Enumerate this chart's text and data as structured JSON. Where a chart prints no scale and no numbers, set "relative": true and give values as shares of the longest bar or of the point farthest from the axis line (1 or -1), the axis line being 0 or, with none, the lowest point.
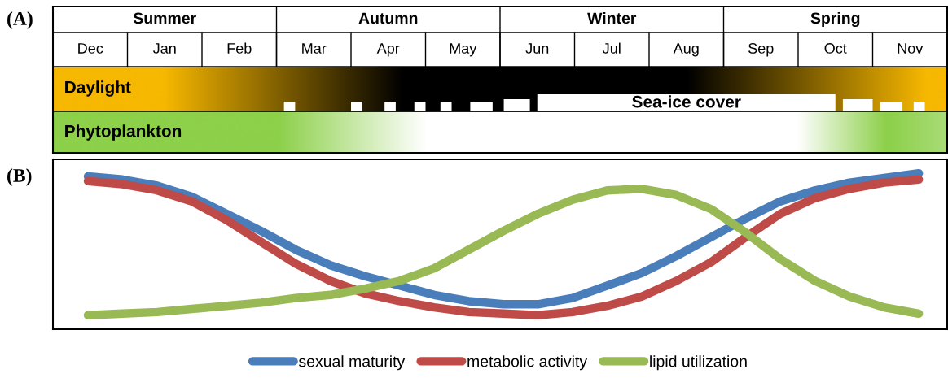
{
  "chart_data": [
    {
      "type": "other",
      "title": "(A)",
      "categories": [
        "Dec",
        "Jan",
        "Feb",
        "Mar",
        "Apr",
        "May",
        "Jun",
        "Jul",
        "Aug",
        "Sep",
        "Oct",
        "Nov"
      ],
      "annotations": [
        "Summer",
        "Autumn",
        "Winter",
        "Spring",
        "Daylight",
        "Sea-ice cover",
        "Phytoplankton"
      ]
    },
    {
      "type": "line",
      "title": "(B)",
      "relative": true,
      "legend": "bottom",
      "marker": "none",
      "line_style": "solid",
      "categories": [
        null,
        null,
        null,
        null,
        null,
        null,
        null,
        null,
        null,
        null,
        null,
        null,
        null,
        null,
        null,
        null,
        null,
        null,
        null,
        null,
        null,
        null,
        null,
        null,
        null
      ],
      "series": [
        {
          "name": "sexual maturity",
          "color": "#4a7ebb",
          "values": [
            0.98,
            0.96,
            0.92,
            0.85,
            0.74,
            0.63,
            0.51,
            0.41,
            0.34,
            0.28,
            0.22,
            0.18,
            0.16,
            0.16,
            0.2,
            0.28,
            0.36,
            0.47,
            0.59,
            0.71,
            0.82,
            0.89,
            0.94,
            0.97,
            1.0
          ]
        },
        {
          "name": "metabolic activity",
          "color": "#be4b48",
          "values": [
            0.95,
            0.93,
            0.89,
            0.82,
            0.7,
            0.56,
            0.42,
            0.31,
            0.23,
            0.18,
            0.14,
            0.11,
            0.1,
            0.09,
            0.11,
            0.15,
            0.21,
            0.31,
            0.43,
            0.59,
            0.74,
            0.84,
            0.9,
            0.94,
            0.96
          ]
        },
        {
          "name": "lipid utilization",
          "color": "#98b954",
          "values": [
            0.09,
            0.1,
            0.11,
            0.13,
            0.15,
            0.17,
            0.2,
            0.22,
            0.26,
            0.31,
            0.39,
            0.51,
            0.63,
            0.74,
            0.83,
            0.89,
            0.9,
            0.86,
            0.77,
            0.62,
            0.45,
            0.31,
            0.21,
            0.14,
            0.1
          ]
        }
      ]
    }
  ]
}
